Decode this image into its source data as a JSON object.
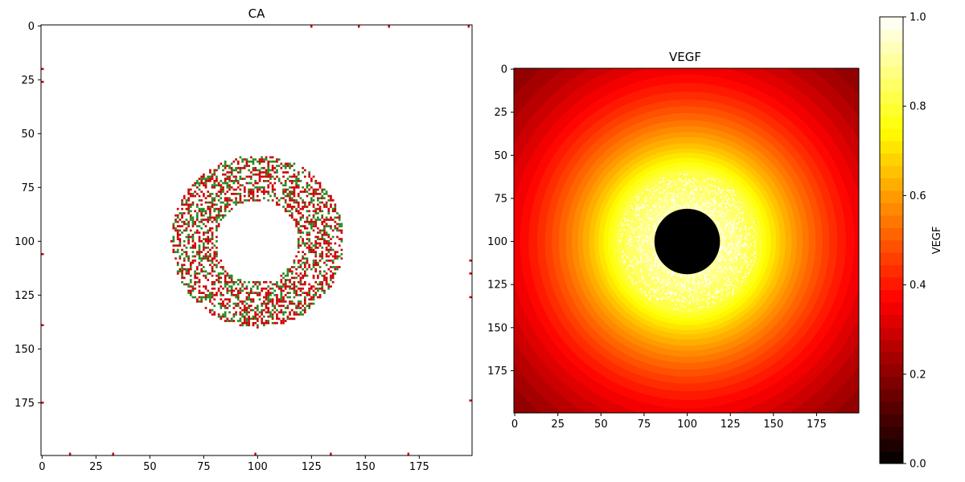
{
  "chart_data": [
    {
      "type": "heatmap",
      "title": "CA",
      "xlabel": "",
      "ylabel": "",
      "xlim": [
        0,
        199
      ],
      "ylim": [
        199,
        0
      ],
      "x_ticks": [
        "0",
        "25",
        "50",
        "75",
        "100",
        "125",
        "150",
        "175"
      ],
      "y_ticks": [
        "0",
        "25",
        "50",
        "75",
        "100",
        "125",
        "150",
        "175"
      ],
      "grid_size": 200,
      "colors": {
        "background": "#ffffff",
        "red_cell": "#cc0000",
        "green_cell": "#228b22"
      },
      "annulus": {
        "center": [
          100,
          100
        ],
        "inner_radius": 19,
        "outer_radius": 40
      },
      "edge_marks": {
        "top": [
          125,
          147,
          161,
          198
        ],
        "bottom": [
          13,
          33,
          99,
          134,
          170
        ],
        "left": [
          20,
          26,
          106,
          139,
          175
        ],
        "right": [
          109,
          115,
          126,
          174
        ]
      }
    },
    {
      "type": "heatmap",
      "title": "VEGF",
      "xlabel": "",
      "ylabel": "",
      "xlim": [
        0,
        199
      ],
      "ylim": [
        199,
        0
      ],
      "x_ticks": [
        "0",
        "25",
        "50",
        "75",
        "100",
        "125",
        "150",
        "175"
      ],
      "y_ticks": [
        "0",
        "25",
        "50",
        "75",
        "100",
        "125",
        "150",
        "175"
      ],
      "colormap": "hot",
      "levels": 36,
      "center": [
        100,
        100
      ],
      "hole_radius": 19,
      "speckle_radius": 40,
      "colorbar": {
        "label": "VEGF",
        "range": [
          0,
          1
        ],
        "ticks": [
          "0.0",
          "0.2",
          "0.4",
          "0.6",
          "0.8",
          "1.0"
        ]
      }
    }
  ]
}
